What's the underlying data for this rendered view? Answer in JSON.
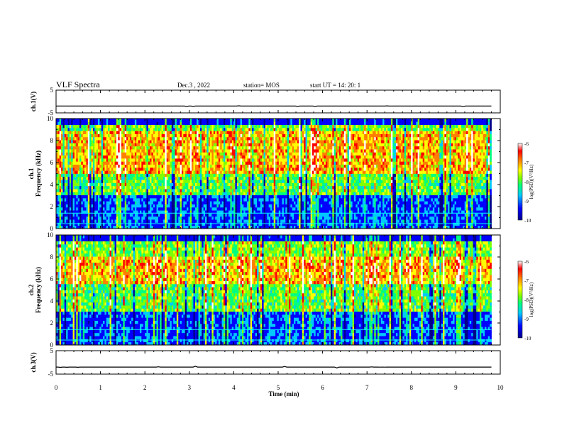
{
  "header": {
    "title": "VLF Spectra",
    "date": "Dec.3 , 2022",
    "station": "station= MOS",
    "start": "start UT = 14: 20: 1"
  },
  "chart_data": [
    {
      "type": "line",
      "panel": "ch1-voltage",
      "ylabel": "ch.1(V)",
      "ylim": [
        -5,
        5
      ],
      "yticks": [
        "5",
        "-5"
      ],
      "x": [
        0,
        9.8
      ],
      "values": [
        -2,
        -2
      ]
    },
    {
      "type": "heatmap",
      "panel": "ch1-spectrogram",
      "ylabel": "ch.1\nFrequency (kHz)",
      "ylim": [
        0,
        10
      ],
      "yticks": [
        "0",
        "2",
        "4",
        "6",
        "8",
        "10"
      ],
      "xlim": [
        0,
        10
      ],
      "data_extent_min": 9.8,
      "band_kHz": [
        5,
        9
      ],
      "colorbar": {
        "label": "log(PSD)(V²/Hz)",
        "ticks": [
          "-6",
          "-7",
          "-8",
          "-9",
          "-10"
        ],
        "range": [
          -10,
          -6
        ]
      }
    },
    {
      "type": "heatmap",
      "panel": "ch2-spectrogram",
      "ylabel": "ch.2\nFrequency (kHz)",
      "ylim": [
        0,
        10
      ],
      "yticks": [
        "0",
        "2",
        "4",
        "6",
        "8",
        "10"
      ],
      "xlim": [
        0,
        10
      ],
      "data_extent_min": 9.8,
      "band_kHz": [
        5.5,
        8
      ],
      "colorbar": {
        "label": "log(PSD)(V²/Hz)",
        "ticks": [
          "-6",
          "-7",
          "-8",
          "-9",
          "-10"
        ],
        "range": [
          -10,
          -6
        ]
      }
    },
    {
      "type": "line",
      "panel": "ch3-voltage",
      "ylabel": "ch.3(V)",
      "ylim": [
        -5,
        5
      ],
      "yticks": [
        "5",
        "-5"
      ],
      "x": [
        0,
        9.8
      ],
      "values": [
        -2,
        -2
      ]
    }
  ],
  "xaxis": {
    "label": "Time (min)",
    "ticks": [
      "0",
      "1",
      "2",
      "3",
      "4",
      "5",
      "6",
      "7",
      "8",
      "9",
      "10"
    ],
    "xlim": [
      0,
      10
    ]
  },
  "colors": {
    "colormap": [
      "#00008b",
      "#0000ff",
      "#00c8ff",
      "#00ff80",
      "#80ff00",
      "#ffff00",
      "#ff8000",
      "#ff0000",
      "#ffffff"
    ],
    "background": "#ffffff",
    "line": "#000000"
  }
}
